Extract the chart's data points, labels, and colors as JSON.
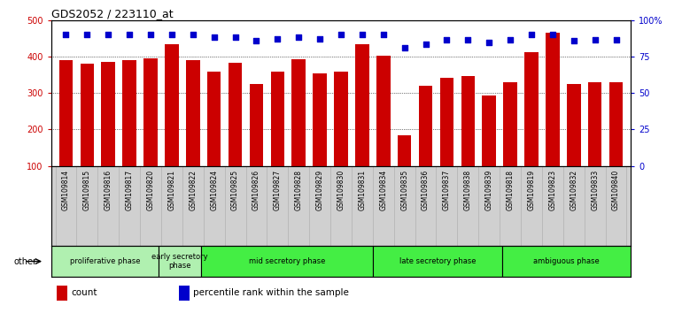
{
  "title": "GDS2052 / 223110_at",
  "samples": [
    "GSM109814",
    "GSM109815",
    "GSM109816",
    "GSM109817",
    "GSM109820",
    "GSM109821",
    "GSM109822",
    "GSM109824",
    "GSM109825",
    "GSM109826",
    "GSM109827",
    "GSM109828",
    "GSM109829",
    "GSM109830",
    "GSM109831",
    "GSM109834",
    "GSM109835",
    "GSM109836",
    "GSM109837",
    "GSM109838",
    "GSM109839",
    "GSM109818",
    "GSM109819",
    "GSM109823",
    "GSM109832",
    "GSM109833",
    "GSM109840"
  ],
  "counts": [
    390,
    380,
    385,
    390,
    395,
    435,
    390,
    358,
    383,
    325,
    358,
    393,
    354,
    358,
    435,
    403,
    185,
    320,
    343,
    347,
    293,
    330,
    412,
    465,
    325,
    330,
    330
  ],
  "percentile_left_vals": [
    460,
    460,
    460,
    460,
    460,
    460,
    460,
    455,
    455,
    445,
    450,
    455,
    450,
    460,
    460,
    460,
    425,
    435,
    447,
    447,
    440,
    447,
    460,
    460,
    445,
    447,
    447
  ],
  "bar_color": "#cc0000",
  "dot_color": "#0000cc",
  "ylim": [
    100,
    500
  ],
  "yticks": [
    100,
    200,
    300,
    400,
    500
  ],
  "yticks_right": [
    0,
    25,
    50,
    75,
    100
  ],
  "yticklabels_right": [
    "0",
    "25",
    "50",
    "75",
    "100%"
  ],
  "gridlines": [
    200,
    300,
    400
  ],
  "phases": [
    {
      "label": "proliferative phase",
      "start": 0,
      "end": 5,
      "color": "#b0f0b0"
    },
    {
      "label": "early secretory\nphase",
      "start": 5,
      "end": 7,
      "color": "#b0f0b0"
    },
    {
      "label": "mid secretory phase",
      "start": 7,
      "end": 15,
      "color": "#44ee44"
    },
    {
      "label": "late secretory phase",
      "start": 15,
      "end": 21,
      "color": "#44ee44"
    },
    {
      "label": "ambiguous phase",
      "start": 21,
      "end": 27,
      "color": "#44ee44"
    }
  ],
  "other_label": "other",
  "legend_items": [
    {
      "label": "count",
      "color": "#cc0000"
    },
    {
      "label": "percentile rank within the sample",
      "color": "#0000cc"
    }
  ],
  "background_color": "#ffffff",
  "label_bg": "#d0d0d0",
  "plot_bg": "#ffffff"
}
